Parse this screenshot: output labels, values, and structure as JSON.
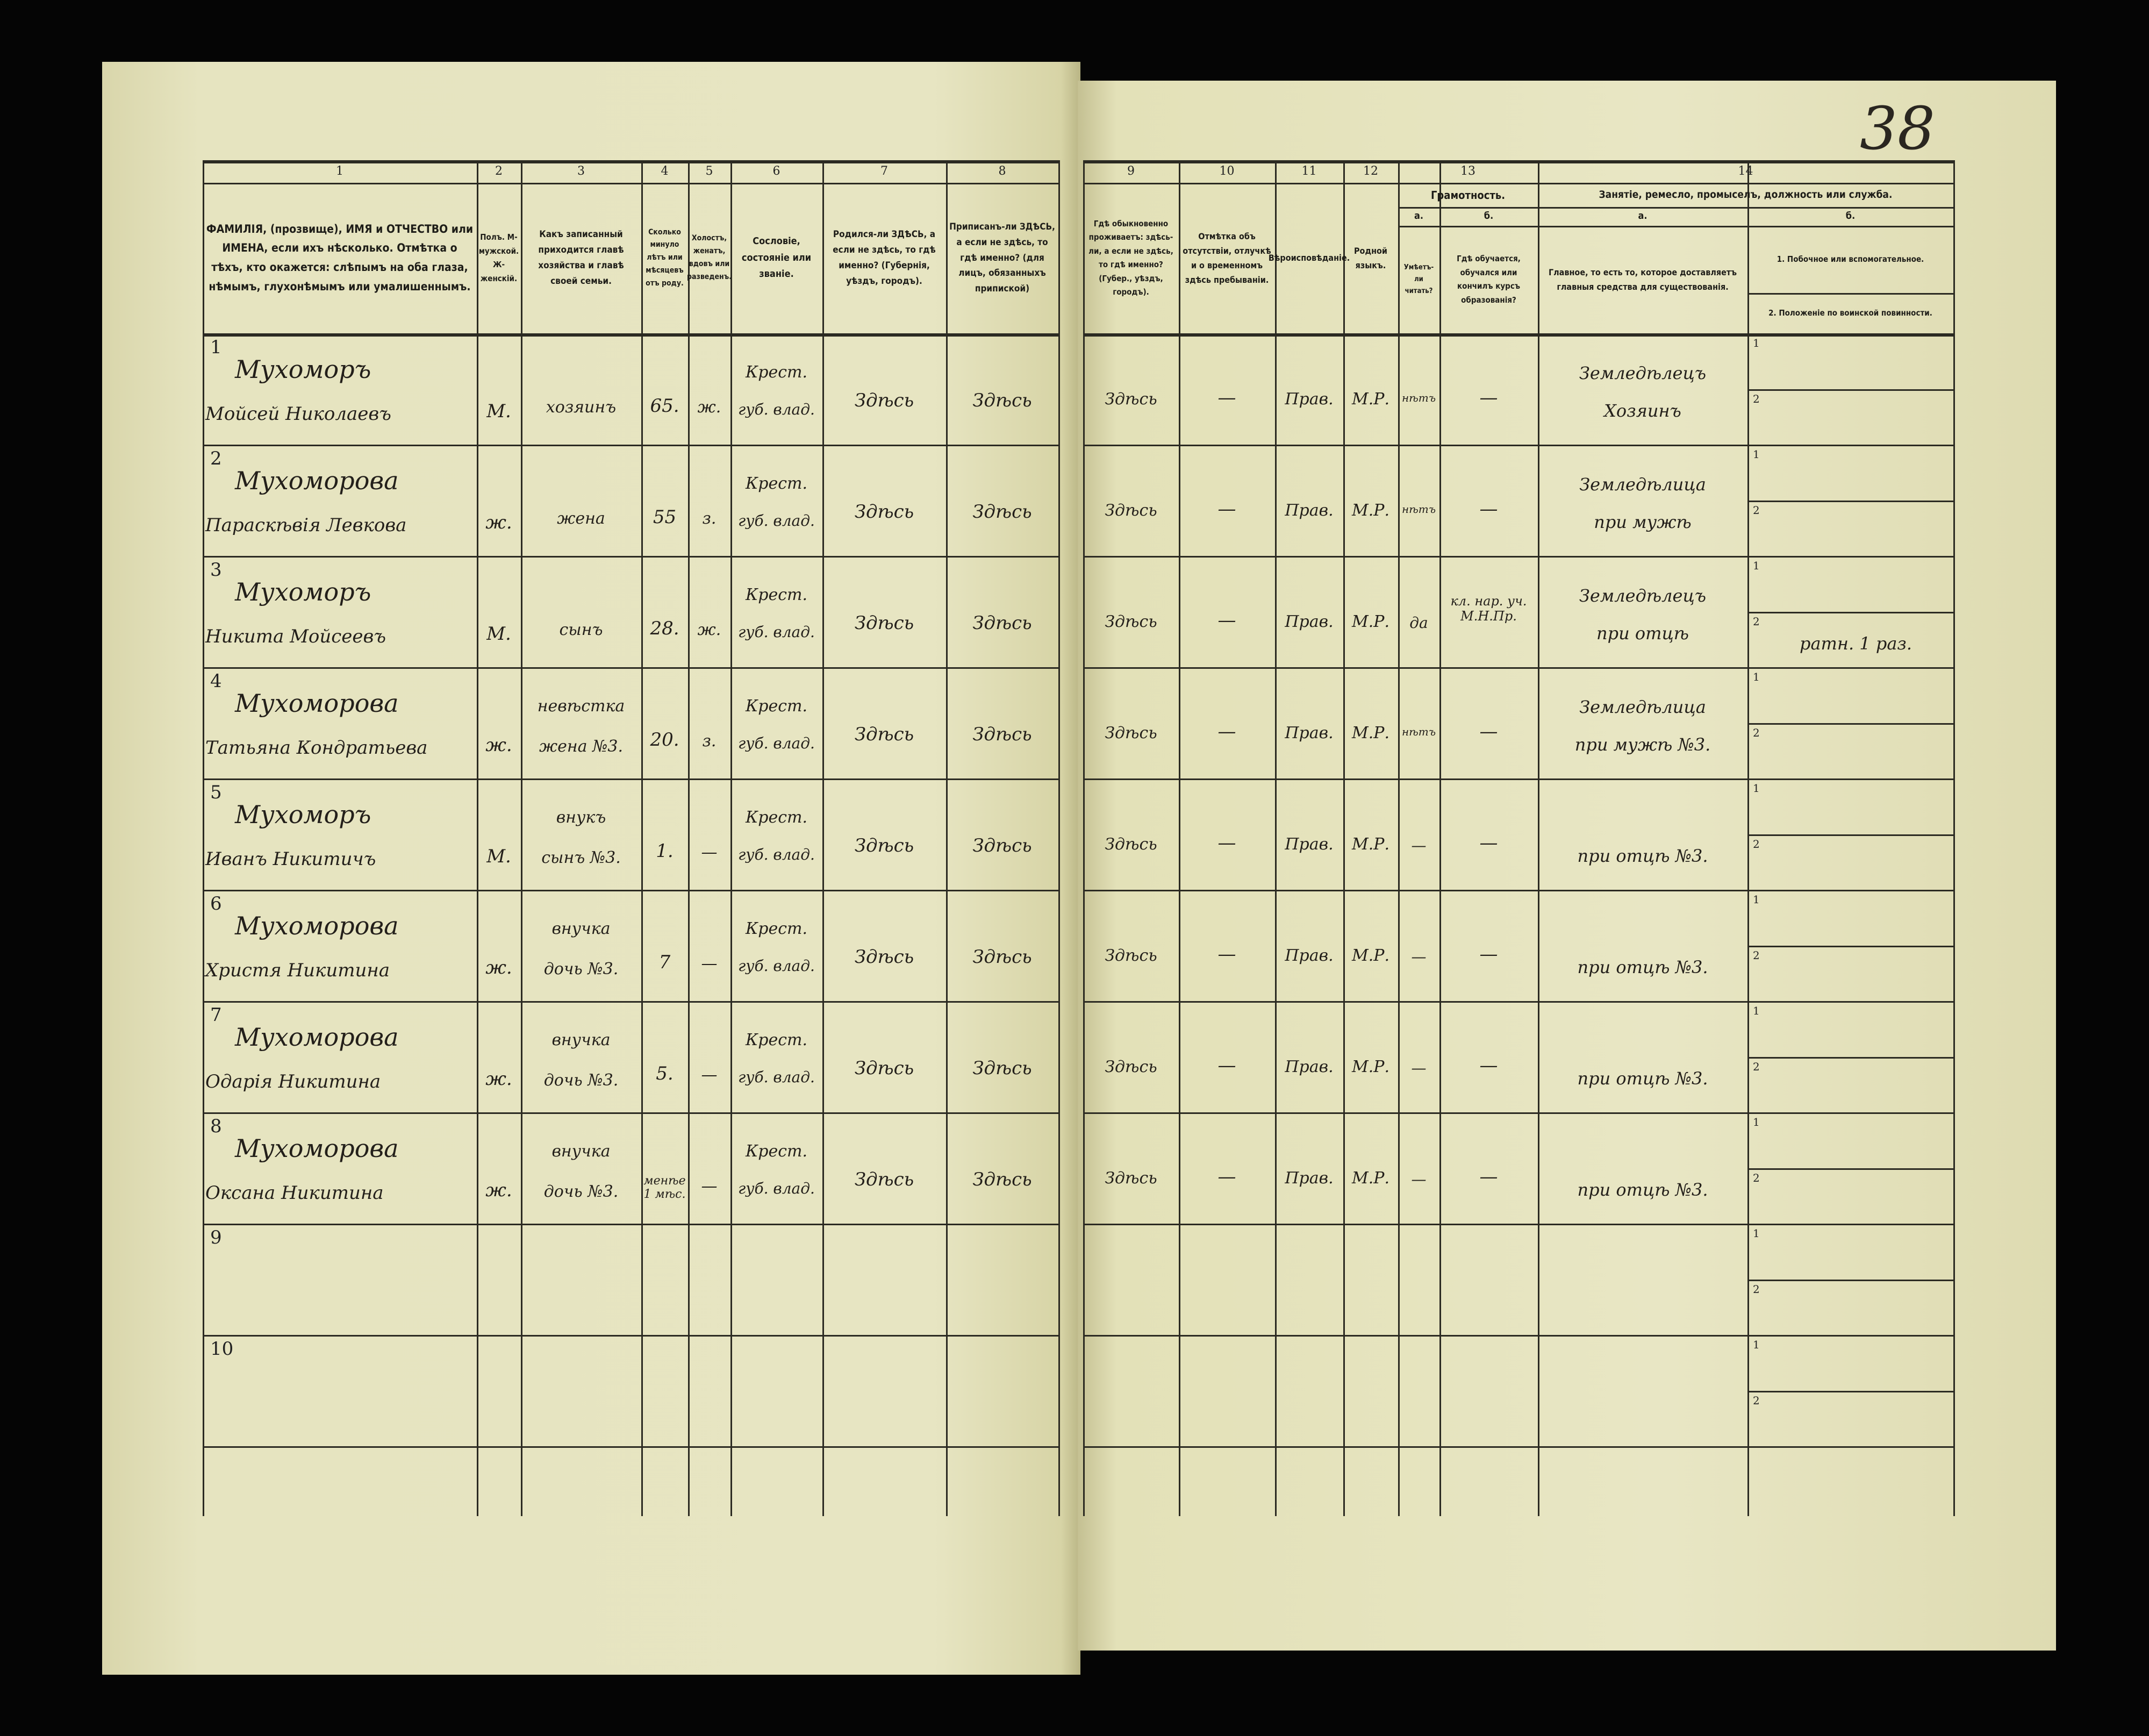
{
  "page_number": "38",
  "column_numbers": [
    "1",
    "2",
    "3",
    "4",
    "5",
    "6",
    "7",
    "8",
    "9",
    "10",
    "11",
    "12",
    "13",
    "14"
  ],
  "headers": {
    "col1": "ФАМИЛІЯ, (прозвище), ИМЯ и ОТЧЕСТВО или ИМЕНА, если ихъ нѣсколько. Отмѣтка о тѣхъ, кто окажется: слѣпымъ на оба глаза, нѣмымъ, глухонѣмымъ или умалишеннымъ.",
    "col2": "Полъ. М-мужской. Ж-женскій.",
    "col3": "Какъ записанный приходится главѣ хозяйства и главѣ своей семьи.",
    "col4": "Сколько минуло лѣтъ или мѣсяцевъ отъ роду.",
    "col5": "Холостъ, женатъ, вдовъ или разведенъ.",
    "col6": "Сословіе, состояніе или званіе.",
    "col7": "Родился-ли ЗДѢСЬ, а если не здѣсь, то гдѣ именно? (Губернія, уѣздъ, городъ).",
    "col8": "Приписанъ-ли ЗДѢСЬ, а если не здѣсь, то гдѣ именно? (для лицъ, обязанныхъ припиской)",
    "col9": "Гдѣ обыкновенно проживаетъ: здѣсь-ли, а если не здѣсь, то гдѣ именно? (Губер., уѣздъ, городъ).",
    "col10": "Отмѣтка объ отсутствіи, отлучкѣ и о временномъ здѣсь пребываніи.",
    "col11": "Вѣроисповѣданіе.",
    "col12": "Родной языкъ.",
    "col13": "Грамотность.",
    "col13a_letter": "а.",
    "col13a": "Умѣетъ-ли читать?",
    "col13b_letter": "б.",
    "col13b": "Гдѣ обучается, обучался или кончилъ курсъ образованія?",
    "col14": "Занятіе, ремесло, промыселъ, должность или служба.",
    "col14a_letter": "а.",
    "col14a": "Главное, то есть то, которое доставляетъ главныя средства для существованія.",
    "col14b_letter": "б.",
    "col14b1": "1. Побочное или вспомогательное.",
    "col14b2": "2. Положеніе по воинской повинности."
  },
  "sub_labels": [
    "1",
    "2"
  ],
  "rows": [
    {
      "n": "1",
      "surname": "Мухоморъ",
      "given": "Мойсей Николаевъ",
      "sex": "М.",
      "relation": "хозяинъ",
      "relation2": "",
      "age": "65.",
      "marital": "ж.",
      "estate1": "Крест.",
      "estate2": "губ. влад.",
      "born": "Здѣсь",
      "registered": "Здѣсь",
      "resides": "Здѣсь",
      "absence": "—",
      "religion": "Прав.",
      "language": "М.Р.",
      "literate": "нѣтъ",
      "education": "—",
      "occupation1": "Земледѣлецъ",
      "occupation2": "Хозяинъ",
      "secondary": "",
      "military": ""
    },
    {
      "n": "2",
      "surname": "Мухоморова",
      "given": "Параскѣвія Левкова",
      "sex": "ж.",
      "relation": "жена",
      "relation2": "",
      "age": "55",
      "marital": "з.",
      "estate1": "Крест.",
      "estate2": "губ. влад.",
      "born": "Здѣсь",
      "registered": "Здѣсь",
      "resides": "Здѣсь",
      "absence": "—",
      "religion": "Прав.",
      "language": "М.Р.",
      "literate": "нѣтъ",
      "education": "—",
      "occupation1": "Земледѣлица",
      "occupation2": "при мужѣ",
      "secondary": "",
      "military": ""
    },
    {
      "n": "3",
      "surname": "Мухоморъ",
      "given": "Никита Мойсеевъ",
      "sex": "М.",
      "relation": "сынъ",
      "relation2": "",
      "age": "28.",
      "marital": "ж.",
      "estate1": "Крест.",
      "estate2": "губ. влад.",
      "born": "Здѣсь",
      "registered": "Здѣсь",
      "resides": "Здѣсь",
      "absence": "—",
      "religion": "Прав.",
      "language": "М.Р.",
      "literate": "да",
      "education": "кл. нар. уч. М.Н.Пр.",
      "occupation1": "Земледѣлецъ",
      "occupation2": "при отцѣ",
      "secondary": "",
      "military": "ратн. 1 раз."
    },
    {
      "n": "4",
      "surname": "Мухоморова",
      "given": "Татьяна Кондратьева",
      "sex": "ж.",
      "relation": "невѣстка",
      "relation2": "жена №3.",
      "age": "20.",
      "marital": "з.",
      "estate1": "Крест.",
      "estate2": "губ. влад.",
      "born": "Здѣсь",
      "registered": "Здѣсь",
      "resides": "Здѣсь",
      "absence": "—",
      "religion": "Прав.",
      "language": "М.Р.",
      "literate": "нѣтъ",
      "education": "—",
      "occupation1": "Земледѣлица",
      "occupation2": "при мужѣ №3.",
      "secondary": "",
      "military": ""
    },
    {
      "n": "5",
      "surname": "Мухоморъ",
      "given": "Иванъ Никитичъ",
      "sex": "М.",
      "relation": "внукъ",
      "relation2": "сынъ №3.",
      "age": "1.",
      "marital": "—",
      "estate1": "Крест.",
      "estate2": "губ. влад.",
      "born": "Здѣсь",
      "registered": "Здѣсь",
      "resides": "Здѣсь",
      "absence": "—",
      "religion": "Прав.",
      "language": "М.Р.",
      "literate": "—",
      "education": "—",
      "occupation1": "",
      "occupation2": "при отцѣ №3.",
      "secondary": "",
      "military": ""
    },
    {
      "n": "6",
      "surname": "Мухоморова",
      "given": "Христя Никитина",
      "sex": "ж.",
      "relation": "внучка",
      "relation2": "дочь №3.",
      "age": "7",
      "marital": "—",
      "estate1": "Крест.",
      "estate2": "губ. влад.",
      "born": "Здѣсь",
      "registered": "Здѣсь",
      "resides": "Здѣсь",
      "absence": "—",
      "religion": "Прав.",
      "language": "М.Р.",
      "literate": "—",
      "education": "—",
      "occupation1": "",
      "occupation2": "при отцѣ №3.",
      "secondary": "",
      "military": ""
    },
    {
      "n": "7",
      "surname": "Мухоморова",
      "given": "Одарія Никитина",
      "sex": "ж.",
      "relation": "внучка",
      "relation2": "дочь №3.",
      "age": "5.",
      "marital": "—",
      "estate1": "Крест.",
      "estate2": "губ. влад.",
      "born": "Здѣсь",
      "registered": "Здѣсь",
      "resides": "Здѣсь",
      "absence": "—",
      "religion": "Прав.",
      "language": "М.Р.",
      "literate": "—",
      "education": "—",
      "occupation1": "",
      "occupation2": "при отцѣ №3.",
      "secondary": "",
      "military": ""
    },
    {
      "n": "8",
      "surname": "Мухоморова",
      "given": "Оксана Никитина",
      "sex": "ж.",
      "relation": "внучка",
      "relation2": "дочь №3.",
      "age": "менѣе 1 мѣс.",
      "marital": "—",
      "estate1": "Крест.",
      "estate2": "губ. влад.",
      "born": "Здѣсь",
      "registered": "Здѣсь",
      "resides": "Здѣсь",
      "absence": "—",
      "religion": "Прав.",
      "language": "М.Р.",
      "literate": "—",
      "education": "—",
      "occupation1": "",
      "occupation2": "при отцѣ №3.",
      "secondary": "",
      "military": ""
    },
    {
      "n": "9"
    },
    {
      "n": "10"
    }
  ]
}
